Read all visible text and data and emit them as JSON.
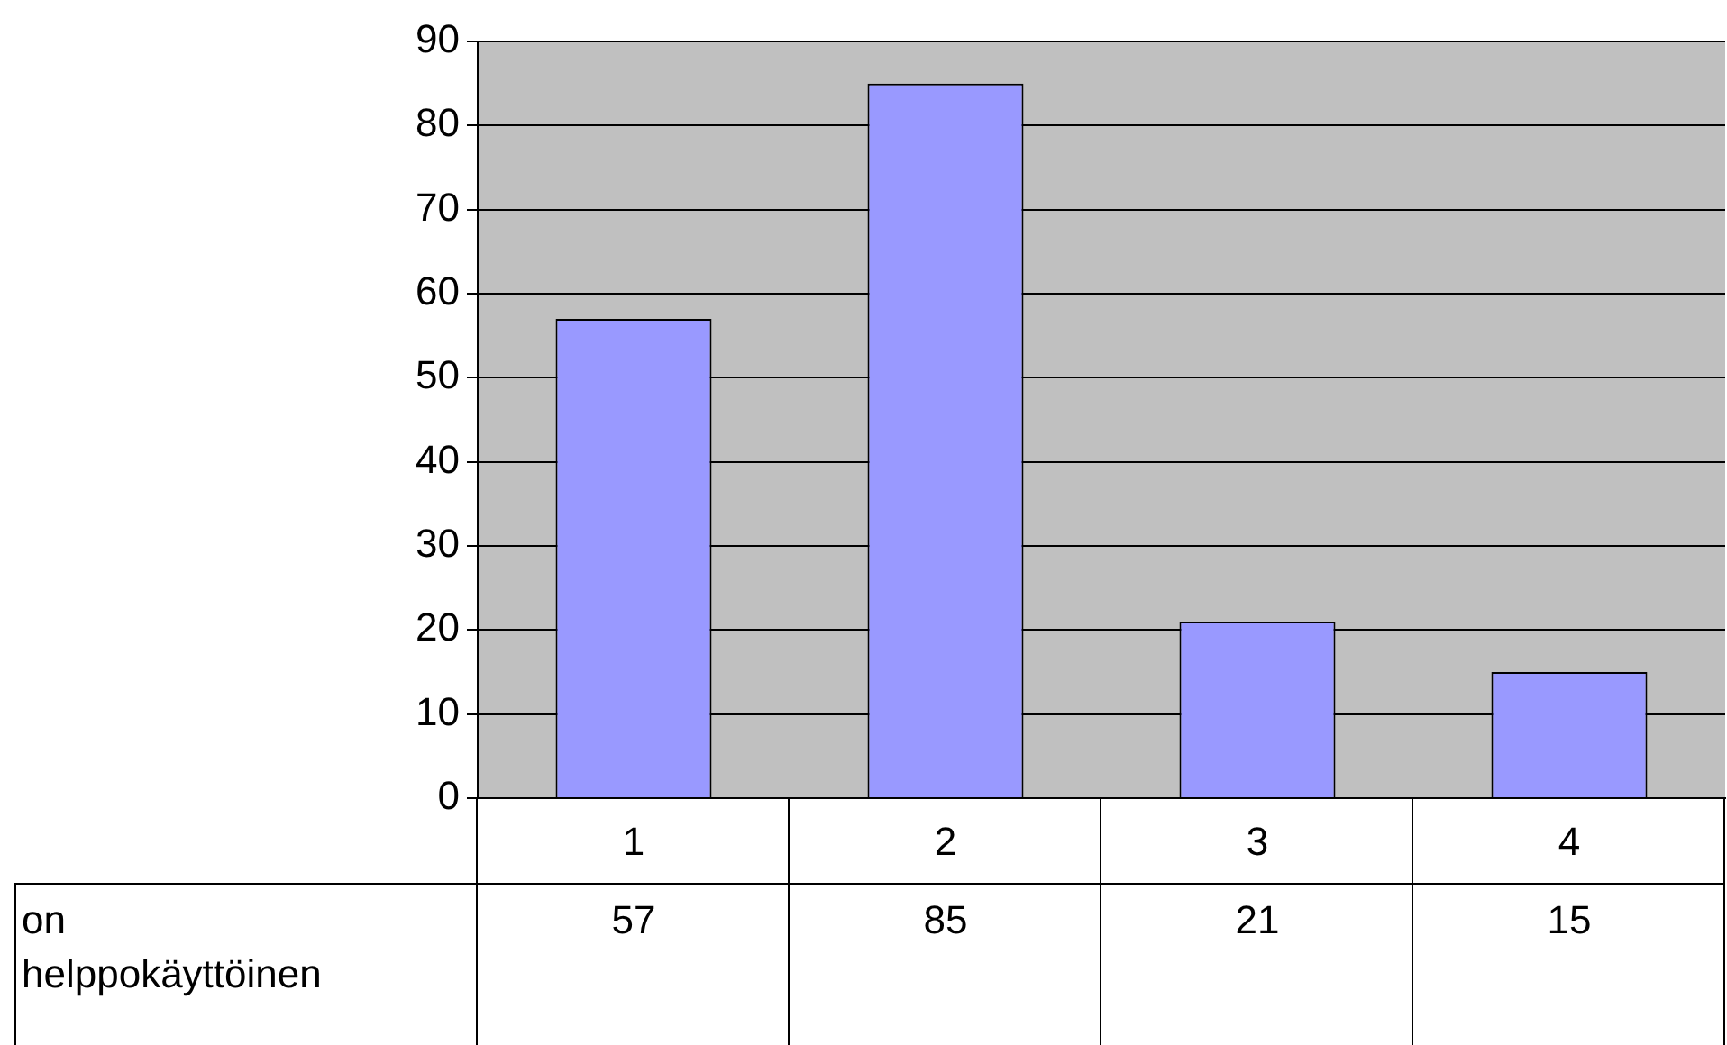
{
  "chart_data": {
    "type": "bar",
    "categories": [
      "1",
      "2",
      "3",
      "4"
    ],
    "series": [
      {
        "name": "on helppokäyttöinen",
        "color": "#9999ff",
        "values": [
          57,
          85,
          21,
          15
        ]
      }
    ],
    "ylim": [
      0,
      90
    ],
    "yticks": [
      0,
      10,
      20,
      30,
      40,
      50,
      60,
      70,
      80,
      90
    ],
    "grid": "y",
    "legend": false,
    "data_labels": true
  }
}
